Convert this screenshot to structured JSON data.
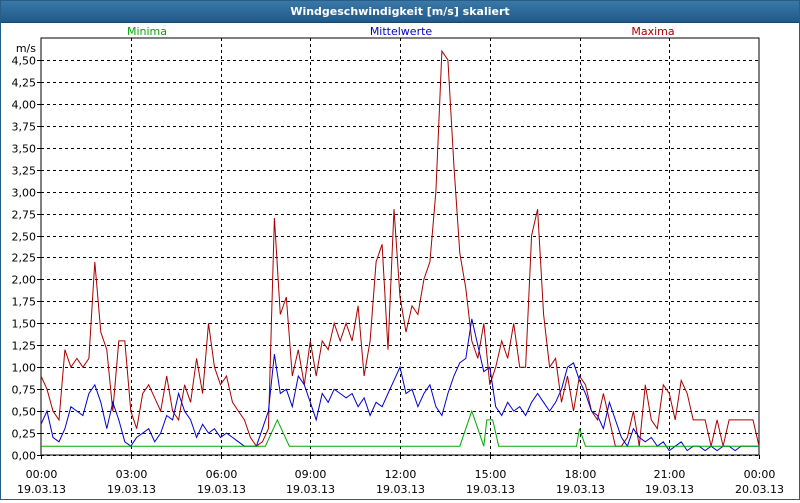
{
  "window": {
    "title": "Windgeschwindigkeit [m/s] skaliert"
  },
  "chart_data": {
    "type": "line",
    "title": "Windgeschwindigkeit [m/s] skaliert",
    "ylabel": "m/s",
    "xlabel": "",
    "ylim": [
      0,
      4.75
    ],
    "xlim": [
      0,
      24
    ],
    "grid": true,
    "yticks": [
      "0,00",
      "0,25",
      "0,50",
      "0,75",
      "1,00",
      "1,25",
      "1,50",
      "1,75",
      "2,00",
      "2,25",
      "2,50",
      "2,75",
      "3,00",
      "3,25",
      "3,50",
      "3,75",
      "4,00",
      "4,25",
      "4,50"
    ],
    "xticks": [
      {
        "time": "00:00",
        "date": "19.03.13"
      },
      {
        "time": "03:00",
        "date": "19.03.13"
      },
      {
        "time": "06:00",
        "date": "19.03.13"
      },
      {
        "time": "09:00",
        "date": "19.03.13"
      },
      {
        "time": "12:00",
        "date": "19.03.13"
      },
      {
        "time": "15:00",
        "date": "19.03.13"
      },
      {
        "time": "18:00",
        "date": "19.03.13"
      },
      {
        "time": "21:00",
        "date": "19.03.13"
      },
      {
        "time": "00:00",
        "date": "20.03.13"
      }
    ],
    "legend_placement": "top",
    "series": [
      {
        "name": "Minima",
        "color": "#00aa00",
        "x": [
          0,
          7.5,
          7.9,
          8.3,
          14.0,
          14.4,
          14.8,
          14.9,
          15.1,
          15.3,
          17.9,
          18.0,
          18.2,
          24
        ],
        "values": [
          0.1,
          0.1,
          0.4,
          0.1,
          0.1,
          0.5,
          0.1,
          0.4,
          0.4,
          0.1,
          0.1,
          0.3,
          0.1,
          0.1
        ]
      },
      {
        "name": "Mittelwerte",
        "color": "#0000cc",
        "x": [
          0,
          0.2,
          0.4,
          0.6,
          0.8,
          1.0,
          1.2,
          1.4,
          1.6,
          1.8,
          2.0,
          2.2,
          2.4,
          2.6,
          2.8,
          3.0,
          3.2,
          3.4,
          3.6,
          3.8,
          4.0,
          4.2,
          4.4,
          4.6,
          4.8,
          5.0,
          5.2,
          5.4,
          5.6,
          5.8,
          6.0,
          6.2,
          6.4,
          6.6,
          6.8,
          7.0,
          7.2,
          7.4,
          7.6,
          7.8,
          8.0,
          8.2,
          8.4,
          8.6,
          8.8,
          9.0,
          9.2,
          9.4,
          9.6,
          9.8,
          10.0,
          10.2,
          10.4,
          10.6,
          10.8,
          11.0,
          11.2,
          11.4,
          11.6,
          11.8,
          12.0,
          12.2,
          12.4,
          12.6,
          12.8,
          13.0,
          13.2,
          13.4,
          13.6,
          13.8,
          14.0,
          14.2,
          14.4,
          14.6,
          14.8,
          15.0,
          15.2,
          15.4,
          15.6,
          15.8,
          16.0,
          16.2,
          16.4,
          16.6,
          16.8,
          17.0,
          17.2,
          17.4,
          17.6,
          17.8,
          18.0,
          18.2,
          18.4,
          18.6,
          18.8,
          19.0,
          19.2,
          19.4,
          19.6,
          19.8,
          20.0,
          20.2,
          20.4,
          20.6,
          20.8,
          21.0,
          21.2,
          21.4,
          21.6,
          21.8,
          22.0,
          22.2,
          22.4,
          22.6,
          22.8,
          23.0,
          23.2,
          23.4,
          23.6,
          23.8,
          24.0
        ],
        "values": [
          0.35,
          0.5,
          0.2,
          0.15,
          0.3,
          0.55,
          0.5,
          0.45,
          0.7,
          0.8,
          0.6,
          0.3,
          0.6,
          0.4,
          0.15,
          0.1,
          0.2,
          0.25,
          0.3,
          0.15,
          0.25,
          0.45,
          0.4,
          0.7,
          0.5,
          0.4,
          0.2,
          0.35,
          0.25,
          0.3,
          0.2,
          0.25,
          0.2,
          0.15,
          0.1,
          0.1,
          0.1,
          0.3,
          0.5,
          1.15,
          0.7,
          0.75,
          0.55,
          0.9,
          0.8,
          0.6,
          0.4,
          0.7,
          0.6,
          0.75,
          0.7,
          0.65,
          0.7,
          0.55,
          0.65,
          0.45,
          0.6,
          0.55,
          0.7,
          0.85,
          1.0,
          0.7,
          0.75,
          0.55,
          0.7,
          0.8,
          0.55,
          0.45,
          0.7,
          0.9,
          1.05,
          1.1,
          1.55,
          1.25,
          0.95,
          1.0,
          0.55,
          0.45,
          0.6,
          0.5,
          0.55,
          0.45,
          0.6,
          0.7,
          0.6,
          0.5,
          0.6,
          0.75,
          1.0,
          1.05,
          0.85,
          0.7,
          0.5,
          0.45,
          0.3,
          0.6,
          0.4,
          0.2,
          0.1,
          0.3,
          0.2,
          0.15,
          0.2,
          0.1,
          0.15,
          0.05,
          0.1,
          0.15,
          0.05,
          0.1,
          0.1,
          0.05,
          0.1,
          0.05,
          0.1,
          0.1,
          0.05,
          0.1,
          0.1,
          0.1,
          0.1
        ]
      },
      {
        "name": "Maxima",
        "color": "#aa0000",
        "x": [
          0,
          0.2,
          0.4,
          0.6,
          0.8,
          1.0,
          1.2,
          1.4,
          1.6,
          1.8,
          2.0,
          2.2,
          2.4,
          2.6,
          2.8,
          3.0,
          3.2,
          3.4,
          3.6,
          3.8,
          4.0,
          4.2,
          4.4,
          4.6,
          4.8,
          5.0,
          5.2,
          5.4,
          5.6,
          5.8,
          6.0,
          6.2,
          6.4,
          6.6,
          6.8,
          7.0,
          7.2,
          7.4,
          7.6,
          7.8,
          8.0,
          8.2,
          8.4,
          8.6,
          8.8,
          9.0,
          9.2,
          9.4,
          9.6,
          9.8,
          10.0,
          10.2,
          10.4,
          10.6,
          10.8,
          11.0,
          11.2,
          11.4,
          11.6,
          11.8,
          12.0,
          12.2,
          12.4,
          12.6,
          12.8,
          13.0,
          13.2,
          13.4,
          13.6,
          13.8,
          14.0,
          14.2,
          14.4,
          14.6,
          14.8,
          15.0,
          15.2,
          15.4,
          15.6,
          15.8,
          16.0,
          16.2,
          16.4,
          16.6,
          16.8,
          17.0,
          17.2,
          17.4,
          17.6,
          17.8,
          18.0,
          18.2,
          18.4,
          18.6,
          18.8,
          19.0,
          19.2,
          19.4,
          19.6,
          19.8,
          20.0,
          20.2,
          20.4,
          20.6,
          20.8,
          21.0,
          21.2,
          21.4,
          21.6,
          21.8,
          22.0,
          22.2,
          22.4,
          22.6,
          22.8,
          23.0,
          23.2,
          23.4,
          23.6,
          23.8,
          24.0
        ],
        "values": [
          0.9,
          0.75,
          0.5,
          0.4,
          1.2,
          1.0,
          1.1,
          1.0,
          1.1,
          2.2,
          1.4,
          1.2,
          0.5,
          1.3,
          1.3,
          0.5,
          0.3,
          0.7,
          0.8,
          0.65,
          0.5,
          0.9,
          0.5,
          0.4,
          0.8,
          0.6,
          1.1,
          0.7,
          1.5,
          1.0,
          0.8,
          0.9,
          0.6,
          0.5,
          0.4,
          0.2,
          0.1,
          0.15,
          0.3,
          2.7,
          1.6,
          1.8,
          0.9,
          1.2,
          0.8,
          1.3,
          0.9,
          1.3,
          1.2,
          1.5,
          1.3,
          1.5,
          1.3,
          1.7,
          0.9,
          1.3,
          2.2,
          2.4,
          1.2,
          2.8,
          1.8,
          1.4,
          1.7,
          1.6,
          2.0,
          2.2,
          3.0,
          4.6,
          4.5,
          3.3,
          2.3,
          1.9,
          1.3,
          1.1,
          1.5,
          0.8,
          1.0,
          1.3,
          1.1,
          1.5,
          1.0,
          1.0,
          2.5,
          2.8,
          1.6,
          1.0,
          1.1,
          0.6,
          0.9,
          0.5,
          0.9,
          0.8,
          0.5,
          0.4,
          0.7,
          0.4,
          0.1,
          0.1,
          0.2,
          0.5,
          0.1,
          0.8,
          0.4,
          0.3,
          0.8,
          0.7,
          0.4,
          0.85,
          0.7,
          0.4,
          0.4,
          0.4,
          0.1,
          0.4,
          0.1,
          0.4,
          0.4,
          0.4,
          0.4,
          0.4,
          0.1
        ]
      }
    ]
  }
}
